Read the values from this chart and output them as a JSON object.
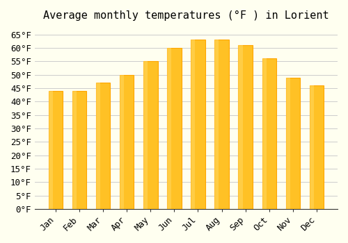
{
  "months": [
    "Jan",
    "Feb",
    "Mar",
    "Apr",
    "May",
    "Jun",
    "Jul",
    "Aug",
    "Sep",
    "Oct",
    "Nov",
    "Dec"
  ],
  "values": [
    44,
    44,
    47,
    50,
    55,
    60,
    63,
    63,
    61,
    56,
    49,
    46
  ],
  "bar_color_face": "#FFC125",
  "bar_color_edge": "#FFA500",
  "title": "Average monthly temperatures (°F ) in Lorient",
  "ylabel": "",
  "xlabel": "",
  "ylim": [
    0,
    68
  ],
  "yticks": [
    0,
    5,
    10,
    15,
    20,
    25,
    30,
    35,
    40,
    45,
    50,
    55,
    60,
    65
  ],
  "ytick_labels": [
    "0°F",
    "5°F",
    "10°F",
    "15°F",
    "20°F",
    "25°F",
    "30°F",
    "35°F",
    "40°F",
    "45°F",
    "50°F",
    "55°F",
    "60°F",
    "65°F"
  ],
  "background_color": "#FFFFF0",
  "grid_color": "#CCCCCC",
  "title_fontsize": 11,
  "tick_fontsize": 9,
  "font_family": "monospace"
}
